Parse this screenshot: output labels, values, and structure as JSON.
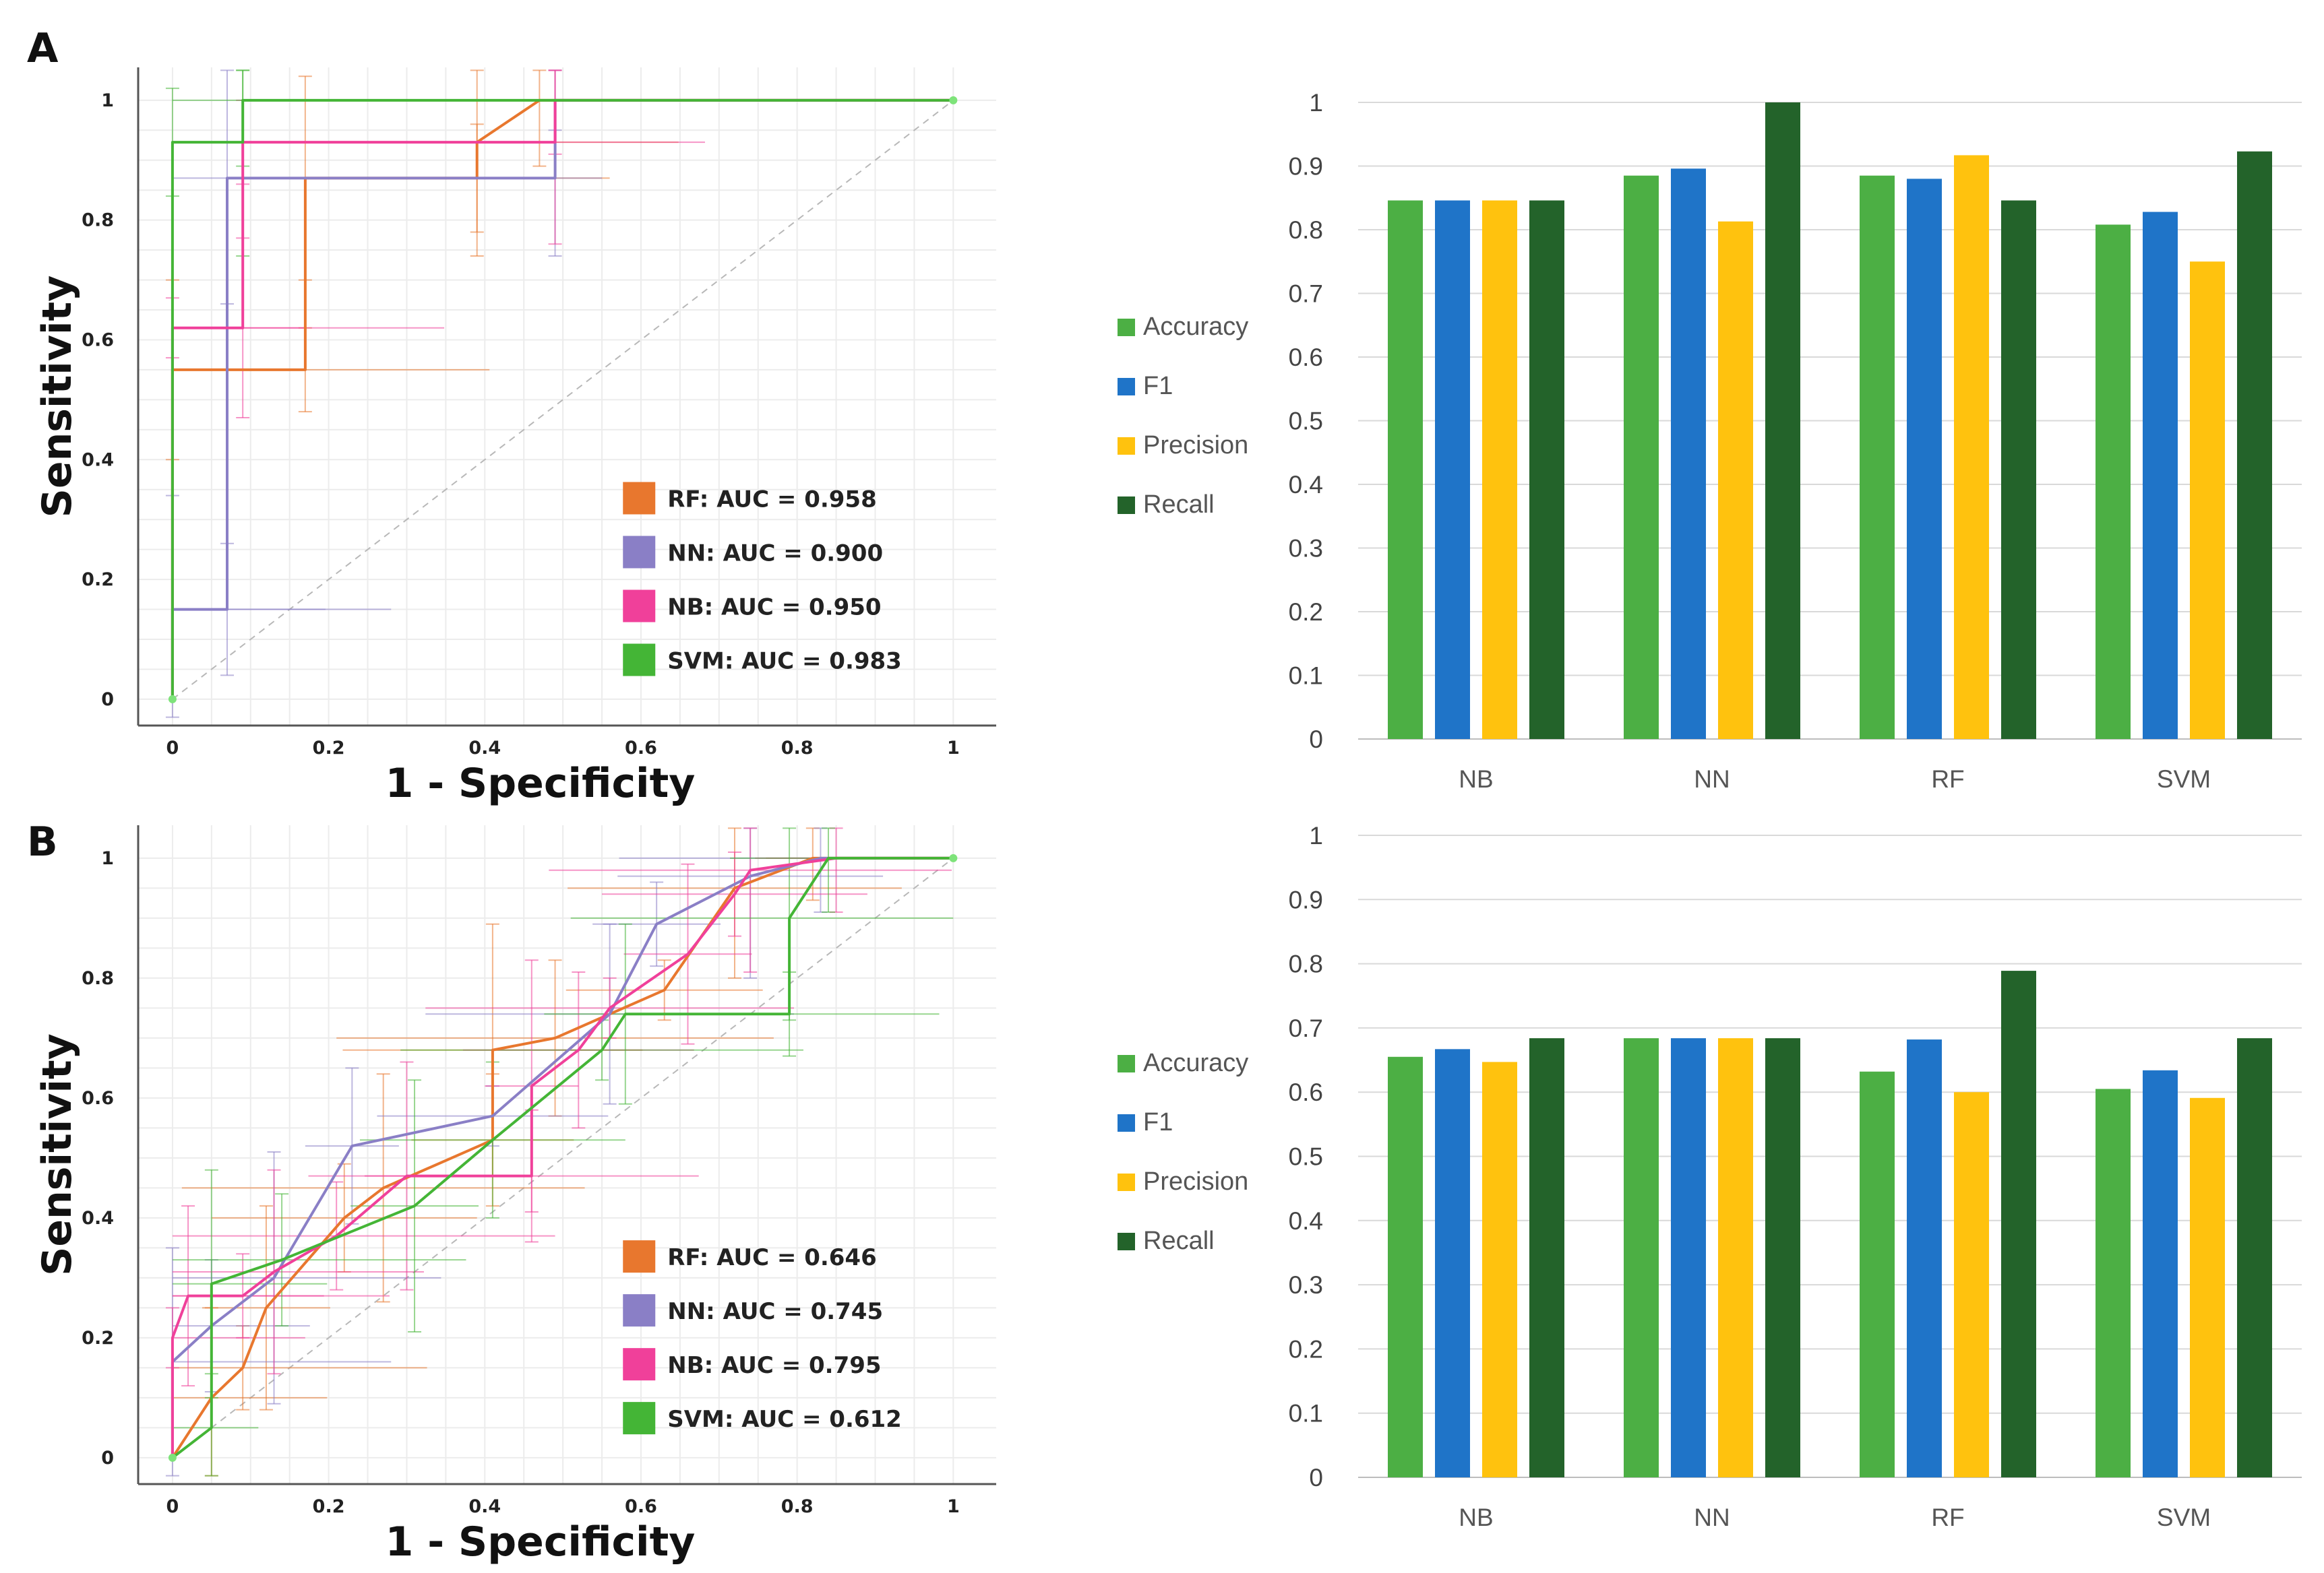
{
  "panels": [
    {
      "letter": "A"
    },
    {
      "letter": "B"
    }
  ],
  "chart_data": [
    {
      "type": "line",
      "panel": "A",
      "title": "",
      "xlabel": "1 - Specificity",
      "ylabel": "Sensitivity",
      "xlim": [
        0,
        1
      ],
      "ylim": [
        0,
        1
      ],
      "xticks": [
        "0",
        "0.2",
        "0.4",
        "0.6",
        "0.8",
        "1"
      ],
      "yticks": [
        "0",
        "0.2",
        "0.4",
        "0.6",
        "0.8",
        "1"
      ],
      "grid": true,
      "diagonal": true,
      "legend_position": "bottom-right",
      "series": [
        {
          "name": "RF",
          "legend": "RF: AUC = 0.958",
          "color": "#e8772e",
          "points": [
            [
              0,
              0
            ],
            [
              0,
              0.55
            ],
            [
              0.17,
              0.55
            ],
            [
              0.17,
              0.87
            ],
            [
              0.39,
              0.87
            ],
            [
              0.39,
              0.93
            ],
            [
              0.47,
              1
            ],
            [
              1,
              1
            ]
          ]
        },
        {
          "name": "NN",
          "legend": "NN: AUC = 0.900",
          "color": "#8a7fc6",
          "points": [
            [
              0,
              0
            ],
            [
              0,
              0.15
            ],
            [
              0.07,
              0.15
            ],
            [
              0.07,
              0.87
            ],
            [
              0.49,
              0.87
            ],
            [
              0.49,
              1
            ],
            [
              1,
              1
            ]
          ]
        },
        {
          "name": "NB",
          "legend": "NB: AUC = 0.950",
          "color": "#f0409a",
          "points": [
            [
              0,
              0
            ],
            [
              0,
              0.62
            ],
            [
              0.09,
              0.62
            ],
            [
              0.09,
              0.93
            ],
            [
              0.49,
              0.93
            ],
            [
              0.49,
              1
            ],
            [
              1,
              1
            ]
          ]
        },
        {
          "name": "SVM",
          "legend": "SVM: AUC = 0.983",
          "color": "#44b536",
          "points": [
            [
              0,
              0
            ],
            [
              0,
              0.93
            ],
            [
              0.09,
              0.93
            ],
            [
              0.09,
              1
            ],
            [
              1,
              1
            ]
          ]
        }
      ]
    },
    {
      "type": "bar",
      "panel": "A",
      "categories": [
        "NB",
        "NN",
        "RF",
        "SVM"
      ],
      "ylim": [
        0,
        1
      ],
      "yticks": [
        "0",
        "0.1",
        "0.2",
        "0.3",
        "0.4",
        "0.5",
        "0.6",
        "0.7",
        "0.8",
        "0.9",
        "1"
      ],
      "grid": true,
      "legend_position": "left",
      "series": [
        {
          "name": "Accuracy",
          "color": "#4caf44",
          "values": [
            0.846,
            0.885,
            0.885,
            0.808
          ]
        },
        {
          "name": "F1",
          "color": "#1f74c8",
          "values": [
            0.846,
            0.896,
            0.88,
            0.828
          ]
        },
        {
          "name": "Precision",
          "color": "#ffc20e",
          "values": [
            0.846,
            0.813,
            0.917,
            0.75
          ]
        },
        {
          "name": "Recall",
          "color": "#23632a",
          "values": [
            0.846,
            1.0,
            0.846,
            0.923
          ]
        }
      ]
    },
    {
      "type": "line",
      "panel": "B",
      "title": "",
      "xlabel": "1 - Specificity",
      "ylabel": "Sensitivity",
      "xlim": [
        0,
        1
      ],
      "ylim": [
        0,
        1
      ],
      "xticks": [
        "0",
        "0.2",
        "0.4",
        "0.6",
        "0.8",
        "1"
      ],
      "yticks": [
        "0",
        "0.2",
        "0.4",
        "0.6",
        "0.8",
        "1"
      ],
      "grid": true,
      "diagonal": true,
      "legend_position": "bottom-right",
      "series": [
        {
          "name": "RF",
          "legend": "RF: AUC = 0.646",
          "color": "#e8772e",
          "points": [
            [
              0,
              0
            ],
            [
              0.05,
              0.1
            ],
            [
              0.09,
              0.15
            ],
            [
              0.12,
              0.25
            ],
            [
              0.22,
              0.4
            ],
            [
              0.27,
              0.45
            ],
            [
              0.41,
              0.53
            ],
            [
              0.41,
              0.68
            ],
            [
              0.49,
              0.7
            ],
            [
              0.63,
              0.78
            ],
            [
              0.72,
              0.95
            ],
            [
              0.82,
              1
            ],
            [
              1,
              1
            ]
          ]
        },
        {
          "name": "NN",
          "legend": "NN: AUC = 0.745",
          "color": "#8a7fc6",
          "points": [
            [
              0,
              0
            ],
            [
              0,
              0.16
            ],
            [
              0.05,
              0.22
            ],
            [
              0.13,
              0.3
            ],
            [
              0.23,
              0.52
            ],
            [
              0.41,
              0.57
            ],
            [
              0.56,
              0.74
            ],
            [
              0.62,
              0.89
            ],
            [
              0.74,
              0.97
            ],
            [
              0.83,
              1
            ],
            [
              1,
              1
            ]
          ]
        },
        {
          "name": "NB",
          "legend": "NB: AUC = 0.795",
          "color": "#f0409a",
          "points": [
            [
              0,
              0
            ],
            [
              0,
              0.2
            ],
            [
              0.02,
              0.27
            ],
            [
              0.09,
              0.27
            ],
            [
              0.13,
              0.31
            ],
            [
              0.21,
              0.37
            ],
            [
              0.3,
              0.47
            ],
            [
              0.46,
              0.47
            ],
            [
              0.46,
              0.62
            ],
            [
              0.52,
              0.68
            ],
            [
              0.56,
              0.75
            ],
            [
              0.66,
              0.84
            ],
            [
              0.72,
              0.94
            ],
            [
              0.74,
              0.98
            ],
            [
              0.85,
              1
            ],
            [
              1,
              1
            ]
          ]
        },
        {
          "name": "SVM",
          "legend": "SVM: AUC = 0.612",
          "color": "#44b536",
          "points": [
            [
              0,
              0
            ],
            [
              0.05,
              0.05
            ],
            [
              0.05,
              0.29
            ],
            [
              0.14,
              0.33
            ],
            [
              0.31,
              0.42
            ],
            [
              0.41,
              0.53
            ],
            [
              0.55,
              0.68
            ],
            [
              0.58,
              0.74
            ],
            [
              0.79,
              0.74
            ],
            [
              0.79,
              0.9
            ],
            [
              0.84,
              1
            ],
            [
              1,
              1
            ]
          ]
        }
      ]
    },
    {
      "type": "bar",
      "panel": "B",
      "categories": [
        "NB",
        "NN",
        "RF",
        "SVM"
      ],
      "ylim": [
        0,
        1
      ],
      "yticks": [
        "0",
        "0.1",
        "0.2",
        "0.3",
        "0.4",
        "0.5",
        "0.6",
        "0.7",
        "0.8",
        "0.9",
        "1"
      ],
      "grid": true,
      "legend_position": "left",
      "series": [
        {
          "name": "Accuracy",
          "color": "#4caf44",
          "values": [
            0.655,
            0.684,
            0.632,
            0.605
          ]
        },
        {
          "name": "F1",
          "color": "#1f74c8",
          "values": [
            0.667,
            0.684,
            0.682,
            0.634
          ]
        },
        {
          "name": "Precision",
          "color": "#ffc20e",
          "values": [
            0.647,
            0.684,
            0.6,
            0.591
          ]
        },
        {
          "name": "Recall",
          "color": "#23632a",
          "values": [
            0.684,
            0.684,
            0.789,
            0.684
          ]
        }
      ]
    }
  ]
}
